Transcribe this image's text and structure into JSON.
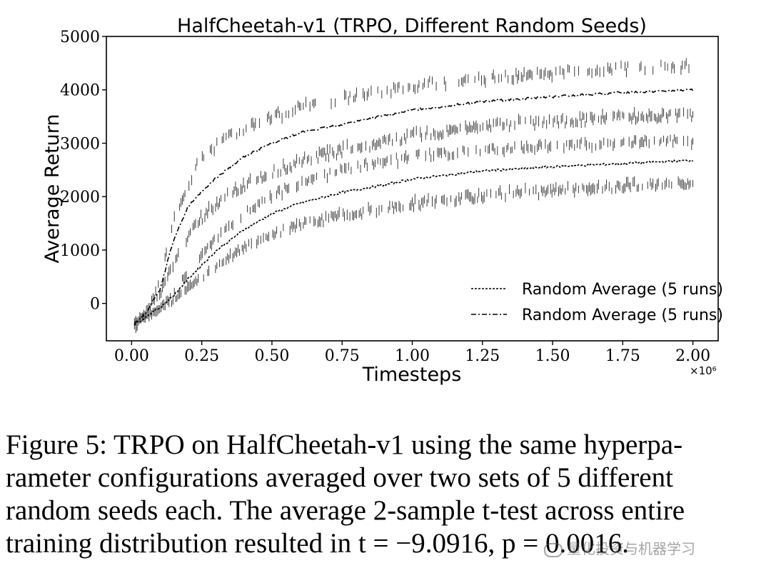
{
  "chart_data": {
    "type": "line",
    "title": "HalfCheetah-v1 (TRPO, Different Random Seeds)",
    "xlabel": "Timesteps",
    "ylabel": "Average Return",
    "x_multiplier": "×10⁶",
    "xlim": [
      -0.09,
      2.09
    ],
    "ylim": [
      -700,
      5000
    ],
    "xticks": [
      0.0,
      0.25,
      0.5,
      0.75,
      1.0,
      1.25,
      1.5,
      1.75,
      2.0
    ],
    "xtick_labels": [
      "0.00",
      "0.25",
      "0.50",
      "0.75",
      "1.00",
      "1.25",
      "1.50",
      "1.75",
      "2.00"
    ],
    "yticks": [
      0,
      1000,
      2000,
      3000,
      4000,
      5000
    ],
    "ytick_labels": [
      "0",
      "1000",
      "2000",
      "3000",
      "4000",
      "5000"
    ],
    "grid": false,
    "legend_position": "lower-right",
    "series": [
      {
        "name": "Random Average (5 runs)",
        "style": "dashed",
        "x": [
          0.01,
          0.05,
          0.1,
          0.15,
          0.2,
          0.25,
          0.3,
          0.4,
          0.5,
          0.6,
          0.75,
          0.9,
          1.0,
          1.25,
          1.5,
          1.75,
          2.0
        ],
        "mean": [
          -400,
          -250,
          -80,
          150,
          450,
          720,
          980,
          1380,
          1680,
          1880,
          2080,
          2220,
          2330,
          2480,
          2560,
          2620,
          2680
        ],
        "upper": [
          -380,
          -200,
          0,
          300,
          700,
          1050,
          1350,
          1800,
          2150,
          2400,
          2650,
          2800,
          2900,
          3000,
          3100,
          3150,
          3200
        ],
        "lower": [
          -420,
          -310,
          -200,
          -50,
          180,
          370,
          570,
          900,
          1150,
          1330,
          1500,
          1620,
          1700,
          1850,
          1950,
          2050,
          2100
        ]
      },
      {
        "name": "Random Average (5 runs)",
        "style": "dashdot",
        "x": [
          0.01,
          0.05,
          0.1,
          0.15,
          0.2,
          0.25,
          0.3,
          0.4,
          0.5,
          0.6,
          0.75,
          0.9,
          1.0,
          1.25,
          1.5,
          1.75,
          2.0
        ],
        "mean": [
          -380,
          -180,
          250,
          1200,
          1800,
          2100,
          2350,
          2750,
          3000,
          3200,
          3350,
          3520,
          3620,
          3780,
          3870,
          3950,
          4000
        ],
        "upper": [
          -360,
          -120,
          500,
          1700,
          2400,
          2900,
          3150,
          3450,
          3650,
          3850,
          4000,
          4150,
          4230,
          4370,
          4470,
          4550,
          4620
        ],
        "lower": [
          -400,
          -240,
          50,
          600,
          1100,
          1450,
          1700,
          2050,
          2300,
          2500,
          2700,
          2880,
          2980,
          3150,
          3250,
          3330,
          3380
        ]
      }
    ]
  },
  "caption": {
    "lines": [
      "Figure 5: TRPO on HalfCheetah-v1 using the same hyperpa-",
      "rameter configurations averaged over two sets of 5 different",
      "random seeds each. The average 2-sample t-test across entire",
      "training distribution resulted in t = −9.0916, p = 0.0016."
    ]
  },
  "watermark": {
    "text": "量化投资与机器学习"
  }
}
